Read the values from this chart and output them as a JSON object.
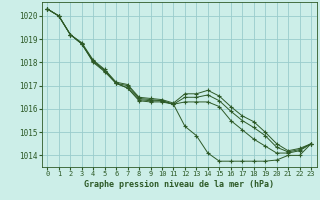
{
  "title": "Graphe pression niveau de la mer (hPa)",
  "bg_color": "#cceee8",
  "grid_color": "#99cccc",
  "line_color": "#2d5a27",
  "xlim": [
    -0.5,
    23.5
  ],
  "ylim": [
    1013.5,
    1020.6
  ],
  "yticks": [
    1014,
    1015,
    1016,
    1017,
    1018,
    1019,
    1020
  ],
  "xticks": [
    0,
    1,
    2,
    3,
    4,
    5,
    6,
    7,
    8,
    9,
    10,
    11,
    12,
    13,
    14,
    15,
    16,
    17,
    18,
    19,
    20,
    21,
    22,
    23
  ],
  "series": [
    [
      1020.3,
      1020.0,
      1019.2,
      1018.8,
      1018.0,
      1017.6,
      1017.1,
      1016.9,
      1016.35,
      1016.3,
      1016.3,
      1016.2,
      1015.25,
      1014.85,
      1014.1,
      1013.75,
      1013.75,
      1013.75,
      1013.75,
      1013.75,
      1013.8,
      1014.0,
      1014.0,
      1014.5
    ],
    [
      1020.3,
      1020.0,
      1019.2,
      1018.8,
      1018.05,
      1017.65,
      1017.1,
      1016.9,
      1016.4,
      1016.35,
      1016.35,
      1016.2,
      1016.3,
      1016.3,
      1016.3,
      1016.1,
      1015.5,
      1015.1,
      1014.7,
      1014.4,
      1014.1,
      1014.1,
      1014.2,
      1014.5
    ],
    [
      1020.3,
      1020.0,
      1019.2,
      1018.8,
      1018.05,
      1017.65,
      1017.1,
      1017.0,
      1016.45,
      1016.4,
      1016.35,
      1016.2,
      1016.5,
      1016.5,
      1016.6,
      1016.35,
      1015.9,
      1015.5,
      1015.2,
      1014.85,
      1014.35,
      1014.15,
      1014.25,
      1014.5
    ],
    [
      1020.3,
      1020.0,
      1019.2,
      1018.85,
      1018.1,
      1017.7,
      1017.15,
      1017.05,
      1016.5,
      1016.45,
      1016.4,
      1016.25,
      1016.65,
      1016.65,
      1016.8,
      1016.55,
      1016.1,
      1015.7,
      1015.45,
      1015.0,
      1014.5,
      1014.2,
      1014.3,
      1014.5
    ]
  ]
}
